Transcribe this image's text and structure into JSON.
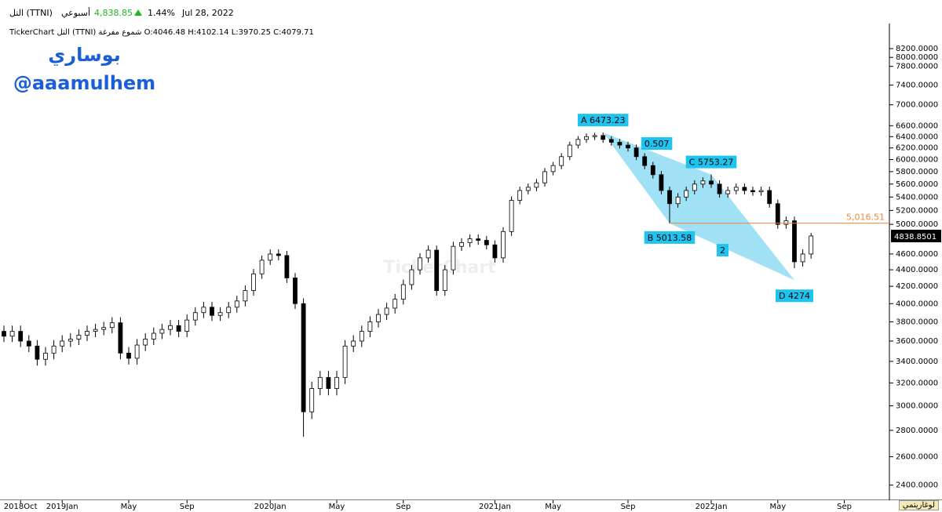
{
  "chart_data": {
    "type": "candlestick",
    "header": {
      "symbol": "التل (TTNI)",
      "interval": "أسبوعي",
      "last": "4,838.85",
      "change": "1.44%",
      "date": "Jul 28, 2022",
      "ohlc": "TickerChart التل (TTNI) شموع مفرغة O:4046.48 H:4102.14 L:3970.25 C:4079.71"
    },
    "author": [
      "بوساري",
      "@aaamulhem"
    ],
    "watermark": "TickerChart",
    "log_label": "لوغاريتمي",
    "log_scale": true,
    "ylim": [
      2300,
      8800
    ],
    "yticks": [
      {
        "value": 2400,
        "label": "2400.0000"
      },
      {
        "value": 2600,
        "label": "2600.0000"
      },
      {
        "value": 2800,
        "label": "2800.0000"
      },
      {
        "value": 3000,
        "label": "3000.0000"
      },
      {
        "value": 3200,
        "label": "3200.0000"
      },
      {
        "value": 3400,
        "label": "3400.0000"
      },
      {
        "value": 3600,
        "label": "3600.0000"
      },
      {
        "value": 3800,
        "label": "3800.0000"
      },
      {
        "value": 4000,
        "label": "4000.0000"
      },
      {
        "value": 4200,
        "label": "4200.0000"
      },
      {
        "value": 4400,
        "label": "4400.0000"
      },
      {
        "value": 4600,
        "label": "4600.0000"
      },
      {
        "value": 5000,
        "label": "5000.0000"
      },
      {
        "value": 5200,
        "label": "5200.0000"
      },
      {
        "value": 5400,
        "label": "5400.0000"
      },
      {
        "value": 5600,
        "label": "5600.0000"
      },
      {
        "value": 5800,
        "label": "5800.0000"
      },
      {
        "value": 6000,
        "label": "6000.0000"
      },
      {
        "value": 6200,
        "label": "6200.0000"
      },
      {
        "value": 6400,
        "label": "6400.0000"
      },
      {
        "value": 6600,
        "label": "6600.0000"
      },
      {
        "value": 7000,
        "label": "7000.0000"
      },
      {
        "value": 7400,
        "label": "7400.0000"
      },
      {
        "value": 7800,
        "label": "7800.0000"
      },
      {
        "value": 8000,
        "label": "8000.0000"
      },
      {
        "value": 8200,
        "label": "8200.0000"
      }
    ],
    "categories": [
      null,
      null,
      "2018Oct",
      null,
      null,
      null,
      null,
      "2019Jan",
      null,
      null,
      null,
      null,
      null,
      null,
      null,
      "May",
      null,
      null,
      null,
      null,
      null,
      null,
      "Sep",
      null,
      null,
      null,
      null,
      null,
      null,
      null,
      null,
      null,
      "2020Jan",
      null,
      null,
      null,
      null,
      null,
      null,
      null,
      "May",
      null,
      null,
      null,
      null,
      null,
      null,
      null,
      "Sep",
      null,
      null,
      null,
      null,
      null,
      null,
      null,
      null,
      null,
      null,
      "2021Jan",
      null,
      null,
      null,
      null,
      null,
      null,
      "May",
      null,
      null,
      null,
      null,
      null,
      null,
      null,
      null,
      "Sep",
      null,
      null,
      null,
      null,
      null,
      null,
      null,
      null,
      null,
      "2022Jan",
      null,
      null,
      null,
      null,
      null,
      null,
      null,
      "May",
      null,
      null,
      null,
      null,
      null,
      null,
      null,
      "Sep",
      null
    ],
    "open": [
      3700,
      3650,
      3700,
      3600,
      3550,
      3420,
      3480,
      3550,
      3600,
      3620,
      3660,
      3700,
      3720,
      3740,
      3790,
      3480,
      3430,
      3560,
      3620,
      3680,
      3720,
      3760,
      3700,
      3820,
      3900,
      3960,
      3870,
      3900,
      3960,
      4030,
      4150,
      4350,
      4520,
      4600,
      4580,
      4300,
      4000,
      2950,
      3150,
      3250,
      3150,
      3250,
      3550,
      3600,
      3700,
      3800,
      3880,
      3950,
      4050,
      4220,
      4400,
      4550,
      4650,
      4150,
      4400,
      4700,
      4750,
      4800,
      4780,
      4720,
      4550,
      4900,
      5350,
      5500,
      5550,
      5620,
      5800,
      5900,
      6050,
      6250,
      6350,
      6400,
      6420,
      6350,
      6300,
      6250,
      6200,
      6050,
      5900,
      5750,
      5500,
      5300,
      5400,
      5500,
      5600,
      5650,
      5600,
      5450,
      5500,
      5550,
      5500,
      5480,
      5500,
      5300,
      5000,
      5050,
      4500,
      4600,
      null,
      null,
      null,
      null,
      null
    ],
    "high": [
      3760,
      3760,
      3760,
      3660,
      3610,
      3540,
      3610,
      3660,
      3680,
      3720,
      3760,
      3780,
      3800,
      3850,
      3850,
      3540,
      3620,
      3680,
      3740,
      3780,
      3820,
      3820,
      3880,
      3960,
      4020,
      4020,
      3960,
      4020,
      4090,
      4210,
      4410,
      4580,
      4660,
      4660,
      4640,
      4360,
      4060,
      3210,
      3310,
      3310,
      3310,
      3610,
      3660,
      3760,
      3860,
      3940,
      4010,
      4110,
      4280,
      4460,
      4610,
      4710,
      4710,
      4460,
      4760,
      4810,
      4860,
      4860,
      4840,
      4780,
      4960,
      5410,
      5560,
      5610,
      5680,
      5860,
      5960,
      6110,
      6310,
      6410,
      6460,
      6470,
      6473.23,
      6410,
      6360,
      6310,
      6260,
      6110,
      5960,
      5810,
      5560,
      5460,
      5560,
      5660,
      5710,
      5753.27,
      5660,
      5560,
      5610,
      5610,
      5560,
      5560,
      5560,
      5360,
      5110,
      5110,
      4660,
      4880,
      null,
      null,
      null,
      null,
      null
    ],
    "low": [
      3590,
      3590,
      3540,
      3490,
      3360,
      3360,
      3420,
      3490,
      3540,
      3560,
      3600,
      3640,
      3660,
      3680,
      3420,
      3370,
      3370,
      3500,
      3560,
      3620,
      3660,
      3640,
      3640,
      3760,
      3840,
      3810,
      3810,
      3840,
      3900,
      3970,
      4090,
      4290,
      4460,
      4520,
      4240,
      3940,
      2750,
      2890,
      3090,
      3090,
      3090,
      3190,
      3490,
      3540,
      3640,
      3740,
      3820,
      3890,
      3990,
      4160,
      4340,
      4490,
      4090,
      4090,
      4340,
      4640,
      4690,
      4720,
      4660,
      4490,
      4490,
      4840,
      5290,
      5440,
      5490,
      5560,
      5740,
      5840,
      5990,
      6190,
      6290,
      6340,
      6290,
      6240,
      6190,
      6140,
      5990,
      5840,
      5690,
      5440,
      5013.58,
      5240,
      5340,
      5440,
      5540,
      5540,
      5390,
      5390,
      5440,
      5440,
      5420,
      5420,
      5240,
      4940,
      4940,
      4420,
      4440,
      4540,
      null,
      null,
      null,
      null,
      null
    ],
    "close": [
      3650,
      3700,
      3600,
      3550,
      3420,
      3480,
      3550,
      3600,
      3620,
      3660,
      3700,
      3720,
      3740,
      3790,
      3480,
      3430,
      3560,
      3620,
      3680,
      3720,
      3760,
      3700,
      3820,
      3900,
      3960,
      3870,
      3900,
      3960,
      4030,
      4150,
      4350,
      4520,
      4600,
      4580,
      4300,
      4000,
      2950,
      3150,
      3250,
      3150,
      3250,
      3550,
      3600,
      3700,
      3800,
      3880,
      3950,
      4050,
      4220,
      4400,
      4550,
      4650,
      4150,
      4400,
      4700,
      4750,
      4800,
      4780,
      4720,
      4550,
      4900,
      5350,
      5500,
      5550,
      5620,
      5800,
      5900,
      6050,
      6250,
      6350,
      6400,
      6420,
      6350,
      6300,
      6250,
      6200,
      6050,
      5900,
      5750,
      5500,
      5300,
      5400,
      5500,
      5600,
      5650,
      5600,
      5450,
      5500,
      5550,
      5500,
      5480,
      5500,
      5300,
      5000,
      5050,
      4500,
      4600,
      4838.85,
      null,
      null,
      null,
      null,
      null
    ],
    "pattern": {
      "color": "#8fdcf5",
      "label_color": "#1ec3f0",
      "points": [
        {
          "label": "A 6473.23",
          "value": 6473.23,
          "index": 72
        },
        {
          "label": "B 5013.58",
          "value": 5013.58,
          "index": 80
        },
        {
          "label": "C 5753.27",
          "value": 5753.27,
          "index": 85
        },
        {
          "label": "D 4274",
          "value": 4274,
          "index": 95
        }
      ],
      "ratios": [
        "0.507",
        "2"
      ]
    },
    "hline": {
      "value": 5016.51,
      "label": "5,016.51",
      "color": "#f0883a"
    },
    "last_price": {
      "value": 4838.8501,
      "label": "4838.8501"
    }
  }
}
